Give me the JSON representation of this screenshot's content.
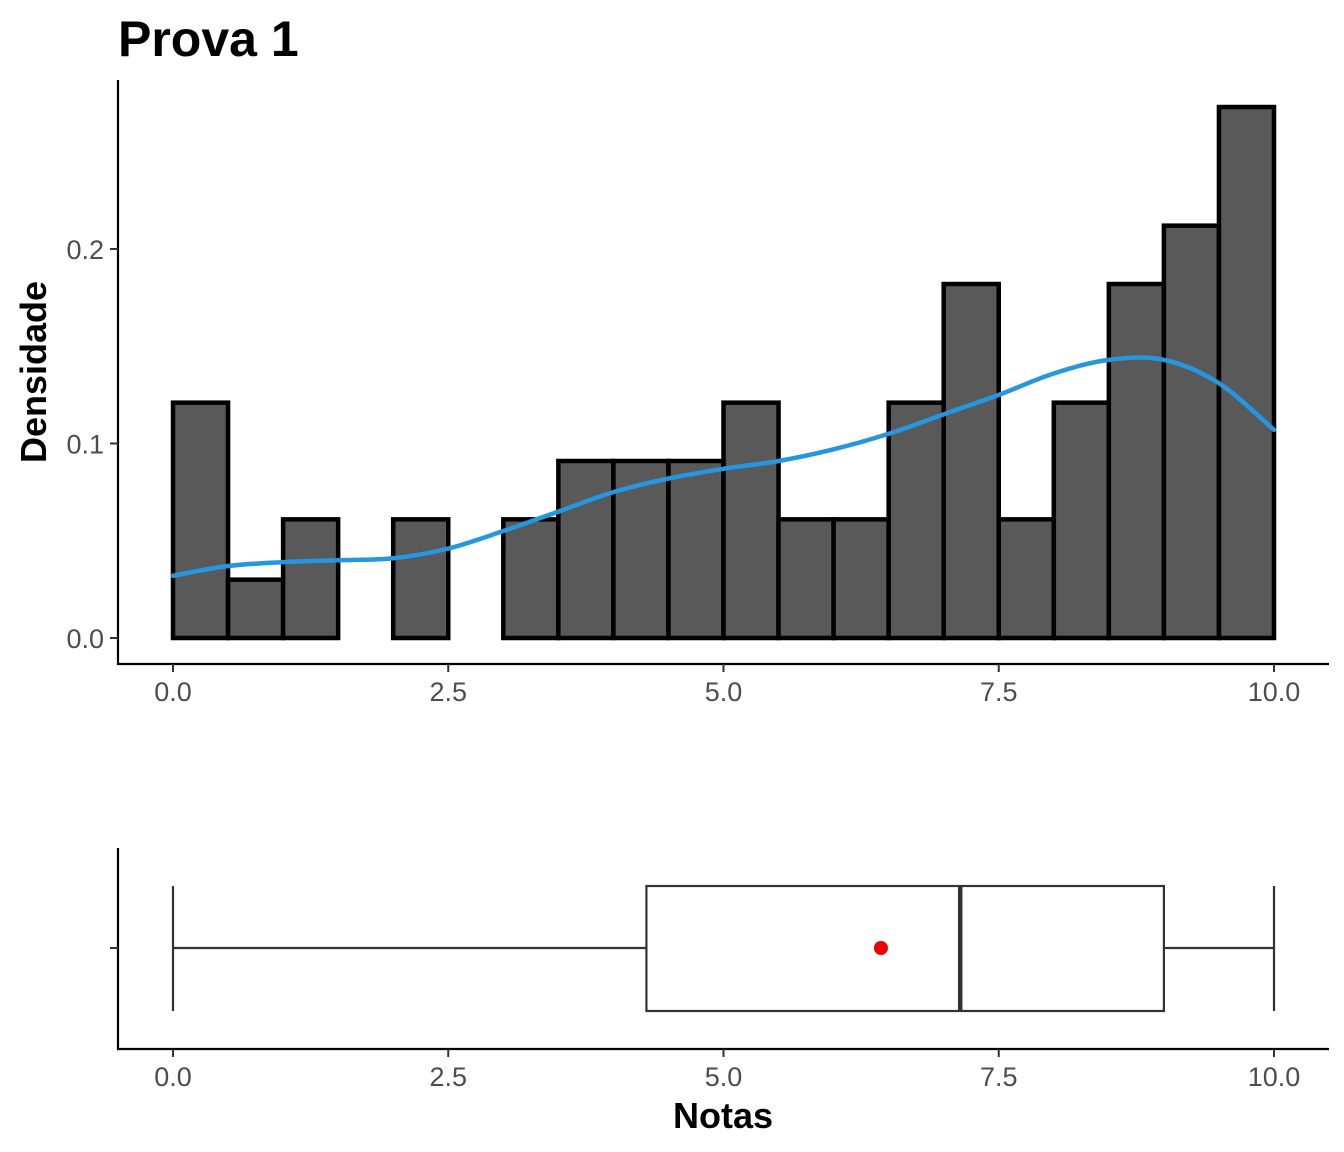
{
  "chart_data": [
    {
      "type": "bar",
      "subtype": "histogram",
      "title": "Prova 1",
      "xlabel": "",
      "ylabel": "Densidade",
      "xlim": [
        -0.5,
        10.5
      ],
      "ylim": [
        0,
        0.28
      ],
      "x_ticks": [
        0.0,
        2.5,
        5.0,
        7.5,
        10.0
      ],
      "x_tick_labels": [
        "0.0",
        "2.5",
        "5.0",
        "7.5",
        "10.0"
      ],
      "y_ticks": [
        0.0,
        0.1,
        0.2
      ],
      "y_tick_labels": [
        "0.0",
        "0.1",
        "0.2"
      ],
      "grid": false,
      "bin_width": 0.5,
      "bins": [
        {
          "x0": 0.0,
          "x1": 0.5,
          "density": 0.121
        },
        {
          "x0": 0.5,
          "x1": 1.0,
          "density": 0.03
        },
        {
          "x0": 1.0,
          "x1": 1.5,
          "density": 0.061
        },
        {
          "x0": 1.5,
          "x1": 2.0,
          "density": 0.0
        },
        {
          "x0": 2.0,
          "x1": 2.5,
          "density": 0.061
        },
        {
          "x0": 2.5,
          "x1": 3.0,
          "density": 0.0
        },
        {
          "x0": 3.0,
          "x1": 3.5,
          "density": 0.061
        },
        {
          "x0": 3.5,
          "x1": 4.0,
          "density": 0.091
        },
        {
          "x0": 4.0,
          "x1": 4.5,
          "density": 0.091
        },
        {
          "x0": 4.5,
          "x1": 5.0,
          "density": 0.091
        },
        {
          "x0": 5.0,
          "x1": 5.5,
          "density": 0.121
        },
        {
          "x0": 5.5,
          "x1": 6.0,
          "density": 0.061
        },
        {
          "x0": 6.0,
          "x1": 6.5,
          "density": 0.061
        },
        {
          "x0": 6.5,
          "x1": 7.0,
          "density": 0.121
        },
        {
          "x0": 7.0,
          "x1": 7.5,
          "density": 0.182
        },
        {
          "x0": 7.5,
          "x1": 8.0,
          "density": 0.061
        },
        {
          "x0": 8.0,
          "x1": 8.5,
          "density": 0.121
        },
        {
          "x0": 8.5,
          "x1": 9.0,
          "density": 0.182
        },
        {
          "x0": 9.0,
          "x1": 9.5,
          "density": 0.212
        },
        {
          "x0": 9.5,
          "x1": 10.0,
          "density": 0.273
        }
      ],
      "density_curve": {
        "x": [
          0.0,
          0.5,
          1.0,
          1.5,
          2.0,
          2.5,
          3.0,
          3.5,
          4.0,
          4.5,
          5.0,
          5.5,
          6.0,
          6.5,
          7.0,
          7.5,
          8.0,
          8.5,
          9.0,
          9.5,
          10.0
        ],
        "y": [
          0.032,
          0.037,
          0.039,
          0.04,
          0.041,
          0.046,
          0.055,
          0.065,
          0.075,
          0.082,
          0.087,
          0.091,
          0.097,
          0.105,
          0.115,
          0.125,
          0.136,
          0.143,
          0.143,
          0.131,
          0.107
        ]
      },
      "colors": {
        "bar_fill": "#595959",
        "bar_stroke": "#000000",
        "curve": "#2596e0"
      }
    },
    {
      "type": "boxplot",
      "xlabel": "Notas",
      "ylabel": "",
      "xlim": [
        -0.5,
        10.5
      ],
      "x_ticks": [
        0.0,
        2.5,
        5.0,
        7.5,
        10.0
      ],
      "x_tick_labels": [
        "0.0",
        "2.5",
        "5.0",
        "7.5",
        "10.0"
      ],
      "grid": false,
      "min": 0.0,
      "q1": 4.3,
      "median": 7.15,
      "q3": 9.0,
      "max": 10.0,
      "mean": 6.43,
      "colors": {
        "box_stroke": "#333333",
        "mean_point": "#ee0000"
      }
    }
  ]
}
